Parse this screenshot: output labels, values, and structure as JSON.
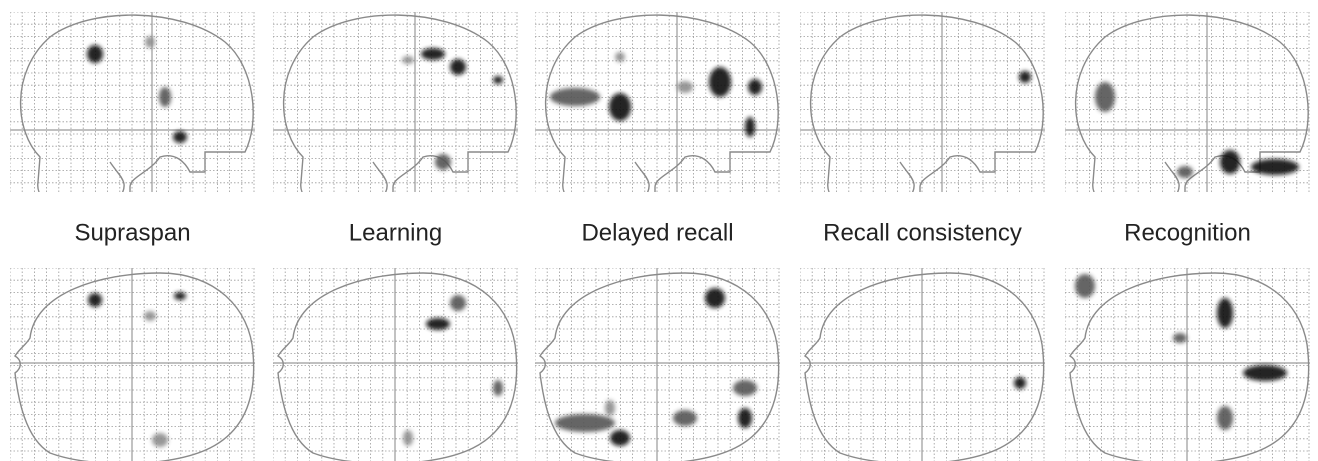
{
  "labels": [
    "Supraspan",
    "Learning",
    "Delayed recall",
    "Recall consistency",
    "Recognition"
  ]
}
